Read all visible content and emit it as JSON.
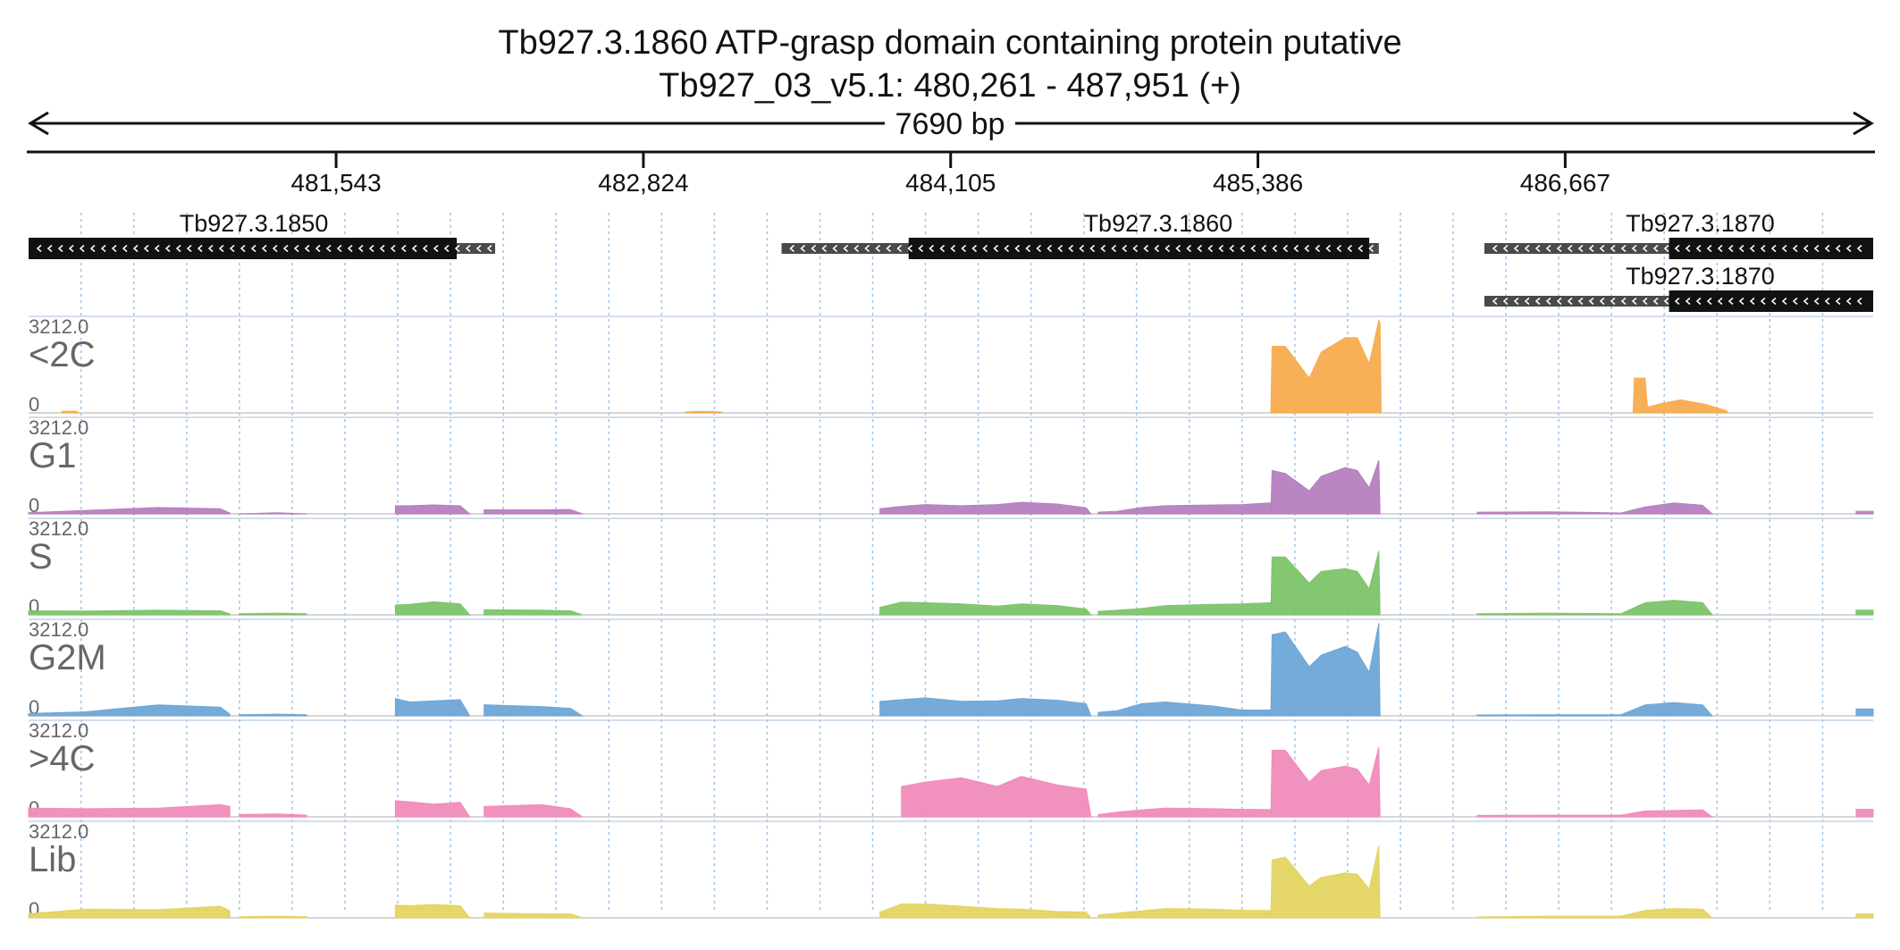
{
  "chart_data": {
    "type": "area",
    "title": "Tb927.3.1860  ATP-grasp domain containing protein  putative",
    "subtitle": "Tb927_03_v5.1: 480,261 - 487,951 (+)",
    "span_label": "7690 bp",
    "region": {
      "chrom": "Tb927_03_v5.1",
      "start": 480261,
      "end": 487951,
      "strand": "+"
    },
    "ticks": [
      {
        "pos": 481543,
        "label": "481,543"
      },
      {
        "pos": 482824,
        "label": "482,824"
      },
      {
        "pos": 484105,
        "label": "484,105"
      },
      {
        "pos": 485386,
        "label": "485,386"
      },
      {
        "pos": 486667,
        "label": "486,667"
      }
    ],
    "gridlines": [
      480480,
      480700,
      480920,
      481140,
      481360,
      481580,
      481800,
      482020,
      482240,
      482460,
      482680,
      482900,
      483120,
      483340,
      483560,
      483780,
      484000,
      484220,
      484440,
      484660,
      484880,
      485100,
      485320,
      485540,
      485760,
      485980,
      486200,
      486420,
      486640,
      486860,
      487080,
      487300,
      487520,
      487740
    ],
    "genes": [
      {
        "name": "Tb927.3.1850",
        "row": 0,
        "start": 480261,
        "end": 482206,
        "cds_start": 480261,
        "cds_end": 482046,
        "strand": "-",
        "label_pos": 481200
      },
      {
        "name": "Tb927.3.1860",
        "row": 0,
        "start": 483400,
        "end": 485890,
        "cds_start": 483930,
        "cds_end": 485850,
        "strand": "-",
        "label_pos": 484970
      },
      {
        "name": "Tb927.3.1870",
        "row": 0,
        "start": 486330,
        "end": 487951,
        "cds_start": 487100,
        "cds_end": 487951,
        "strand": "-",
        "label_pos": 487230
      },
      {
        "name": "Tb927.3.1870",
        "row": 1,
        "start": 486330,
        "end": 487951,
        "cds_start": 487100,
        "cds_end": 487951,
        "strand": "-",
        "label_pos": 487230
      }
    ],
    "ylim": [
      0,
      3212
    ],
    "scale_max_label": "3212.0",
    "scale_min_label": "0",
    "tracks": [
      {
        "name": "<2C",
        "color": "#f7ac4f",
        "segments": [
          {
            "x": [
              480400,
              480460,
              480470
            ],
            "y": [
              60,
              60,
              0
            ]
          },
          {
            "x": [
              483000,
              483040,
              483100,
              483150
            ],
            "y": [
              30,
              50,
              50,
              30
            ]
          },
          {
            "x": [
              485440,
              485445,
              485500,
              485600,
              485650,
              485750,
              485800,
              485850,
              485890,
              485895,
              485900
            ],
            "y": [
              0,
              2300,
              2300,
              1200,
              2100,
              2600,
              2600,
              1700,
              3200,
              3100,
              0
            ]
          },
          {
            "x": [
              486950,
              486955,
              487000,
              487010,
              487080,
              487150,
              487250,
              487340,
              487345
            ],
            "y": [
              0,
              1200,
              1200,
              200,
              350,
              450,
              300,
              70,
              0
            ]
          }
        ]
      },
      {
        "name": "G1",
        "color": "#b57fc0",
        "segments": [
          {
            "x": [
              480261,
              480500,
              480800,
              481060,
              481100
            ],
            "y": [
              40,
              120,
              220,
              180,
              30
            ]
          },
          {
            "x": [
              481140,
              481300,
              481420
            ],
            "y": [
              0,
              40,
              0
            ]
          },
          {
            "x": [
              481790,
              481850,
              481950,
              482060,
              482100
            ],
            "y": [
              280,
              280,
              310,
              280,
              0
            ]
          },
          {
            "x": [
              482160,
              482400,
              482520,
              482570
            ],
            "y": [
              140,
              140,
              150,
              0
            ]
          },
          {
            "x": [
              483810,
              483900,
              484000,
              484150,
              484300,
              484400,
              484550,
              484670,
              484690
            ],
            "y": [
              180,
              260,
              320,
              280,
              320,
              400,
              340,
              210,
              0
            ]
          },
          {
            "x": [
              484720,
              484800,
              484900,
              485000,
              485200,
              485320,
              485440
            ],
            "y": [
              60,
              90,
              220,
              280,
              310,
              320,
              380
            ]
          },
          {
            "x": [
              485440,
              485445,
              485500,
              485600,
              485650,
              485750,
              485800,
              485850,
              485890,
              485895
            ],
            "y": [
              0,
              1500,
              1400,
              800,
              1300,
              1600,
              1500,
              900,
              1850,
              0
            ]
          },
          {
            "x": [
              486300,
              486600,
              486900,
              487000,
              487120,
              487240,
              487280
            ],
            "y": [
              60,
              70,
              30,
              240,
              380,
              300,
              0
            ]
          },
          {
            "x": [
              487880,
              487951
            ],
            "y": [
              90,
              90
            ]
          }
        ]
      },
      {
        "name": "S",
        "color": "#7cc46a",
        "segments": [
          {
            "x": [
              480261,
              480500,
              480800,
              481060,
              481100
            ],
            "y": [
              140,
              130,
              160,
              140,
              30
            ]
          },
          {
            "x": [
              481140,
              481300,
              481420
            ],
            "y": [
              40,
              60,
              40
            ]
          },
          {
            "x": [
              481790,
              481850,
              481950,
              482060,
              482100
            ],
            "y": [
              340,
              360,
              450,
              380,
              0
            ]
          },
          {
            "x": [
              482160,
              482400,
              482520,
              482570
            ],
            "y": [
              180,
              160,
              140,
              0
            ]
          },
          {
            "x": [
              483810,
              483900,
              484000,
              484150,
              484300,
              484400,
              484550,
              484670,
              484690
            ],
            "y": [
              260,
              440,
              420,
              380,
              300,
              380,
              320,
              200,
              0
            ]
          },
          {
            "x": [
              484720,
              484800,
              484900,
              485000,
              485200,
              485320,
              485440
            ],
            "y": [
              120,
              160,
              220,
              320,
              360,
              380,
              420
            ]
          },
          {
            "x": [
              485440,
              485445,
              485500,
              485600,
              485650,
              485750,
              485800,
              485850,
              485890,
              485895
            ],
            "y": [
              0,
              2000,
              2000,
              1100,
              1500,
              1600,
              1500,
              900,
              2200,
              0
            ]
          },
          {
            "x": [
              486300,
              486600,
              486900,
              487000,
              487120,
              487240,
              487280
            ],
            "y": [
              40,
              60,
              40,
              420,
              500,
              420,
              0
            ]
          },
          {
            "x": [
              487880,
              487951
            ],
            "y": [
              160,
              160
            ]
          }
        ]
      },
      {
        "name": "G2M",
        "color": "#6ea6d6",
        "segments": [
          {
            "x": [
              480261,
              480500,
              480800,
              481060,
              481100
            ],
            "y": [
              80,
              140,
              380,
              300,
              60
            ]
          },
          {
            "x": [
              481140,
              481300,
              481420
            ],
            "y": [
              40,
              60,
              40
            ]
          },
          {
            "x": [
              481790,
              481850,
              481950,
              482060,
              482100
            ],
            "y": [
              600,
              480,
              520,
              560,
              0
            ]
          },
          {
            "x": [
              482160,
              482400,
              482520,
              482570
            ],
            "y": [
              380,
              320,
              260,
              0
            ]
          },
          {
            "x": [
              483810,
              483900,
              484000,
              484150,
              484300,
              484400,
              484550,
              484670,
              484690
            ],
            "y": [
              500,
              560,
              620,
              500,
              520,
              600,
              540,
              420,
              0
            ]
          },
          {
            "x": [
              484720,
              484800,
              484900,
              485000,
              485200,
              485320,
              485440
            ],
            "y": [
              120,
              180,
              420,
              480,
              340,
              200,
              200
            ]
          },
          {
            "x": [
              485440,
              485445,
              485500,
              485600,
              485650,
              485750,
              485800,
              485850,
              485890,
              485895
            ],
            "y": [
              0,
              2800,
              2900,
              1700,
              2100,
              2400,
              2200,
              1500,
              3200,
              0
            ]
          },
          {
            "x": [
              486300,
              486600,
              486900,
              487000,
              487120,
              487240,
              487280
            ],
            "y": [
              30,
              40,
              40,
              380,
              460,
              380,
              0
            ]
          },
          {
            "x": [
              487880,
              487951
            ],
            "y": [
              240,
              240
            ]
          }
        ]
      },
      {
        "name": ">4C",
        "color": "#f08bbb",
        "segments": [
          {
            "x": [
              480261,
              480500,
              480800,
              481060,
              481100
            ],
            "y": [
              300,
              280,
              300,
              420,
              360
            ]
          },
          {
            "x": [
              481140,
              481300,
              481420
            ],
            "y": [
              80,
              100,
              60
            ]
          },
          {
            "x": [
              481790,
              481850,
              481950,
              482060,
              482100
            ],
            "y": [
              560,
              520,
              440,
              500,
              0
            ]
          },
          {
            "x": [
              482160,
              482400,
              482520,
              482570
            ],
            "y": [
              360,
              420,
              280,
              0
            ]
          },
          {
            "x": [
              483900,
              484000,
              484150,
              484300,
              484400,
              484550,
              484670,
              484690
            ],
            "y": [
              1050,
              1200,
              1350,
              1050,
              1400,
              1100,
              960,
              0
            ]
          },
          {
            "x": [
              484720,
              484800,
              484900,
              485000,
              485200,
              485320,
              485440
            ],
            "y": [
              80,
              160,
              240,
              300,
              280,
              260,
              250
            ]
          },
          {
            "x": [
              485440,
              485445,
              485500,
              485600,
              485650,
              485750,
              485800,
              485850,
              485890,
              485895
            ],
            "y": [
              0,
              2300,
              2300,
              1200,
              1600,
              1750,
              1650,
              1100,
              2400,
              0
            ]
          },
          {
            "x": [
              486300,
              486600,
              486900,
              487000,
              487120,
              487240,
              487280
            ],
            "y": [
              50,
              60,
              60,
              200,
              220,
              240,
              0
            ]
          },
          {
            "x": [
              487880,
              487951
            ],
            "y": [
              260,
              260
            ]
          }
        ]
      },
      {
        "name": "Lib",
        "color": "#e4d462",
        "segments": [
          {
            "x": [
              480261,
              480500,
              480800,
              481060,
              481100
            ],
            "y": [
              140,
              300,
              280,
              400,
              240
            ]
          },
          {
            "x": [
              481140,
              481300,
              481420
            ],
            "y": [
              40,
              60,
              40
            ]
          },
          {
            "x": [
              481790,
              481850,
              481950,
              482060,
              482100
            ],
            "y": [
              440,
              420,
              460,
              420,
              0
            ]
          },
          {
            "x": [
              482160,
              482400,
              482520,
              482570
            ],
            "y": [
              160,
              140,
              140,
              0
            ]
          },
          {
            "x": [
              483810,
              483900,
              484000,
              484150,
              484300,
              484400,
              484550,
              484670,
              484690
            ],
            "y": [
              200,
              480,
              480,
              400,
              320,
              300,
              220,
              200,
              0
            ]
          },
          {
            "x": [
              484720,
              484800,
              484900,
              485000,
              485200,
              485320,
              485440
            ],
            "y": [
              100,
              160,
              240,
              320,
              300,
              260,
              250
            ]
          },
          {
            "x": [
              485440,
              485445,
              485500,
              485600,
              485650,
              485750,
              485800,
              485850,
              485890,
              485895
            ],
            "y": [
              0,
              2000,
              2100,
              1100,
              1400,
              1550,
              1500,
              1000,
              2500,
              0
            ]
          },
          {
            "x": [
              486300,
              486600,
              486900,
              487000,
              487120,
              487240,
              487280
            ],
            "y": [
              30,
              60,
              60,
              260,
              320,
              300,
              0
            ]
          },
          {
            "x": [
              487880,
              487951
            ],
            "y": [
              140,
              140
            ]
          }
        ]
      }
    ]
  }
}
